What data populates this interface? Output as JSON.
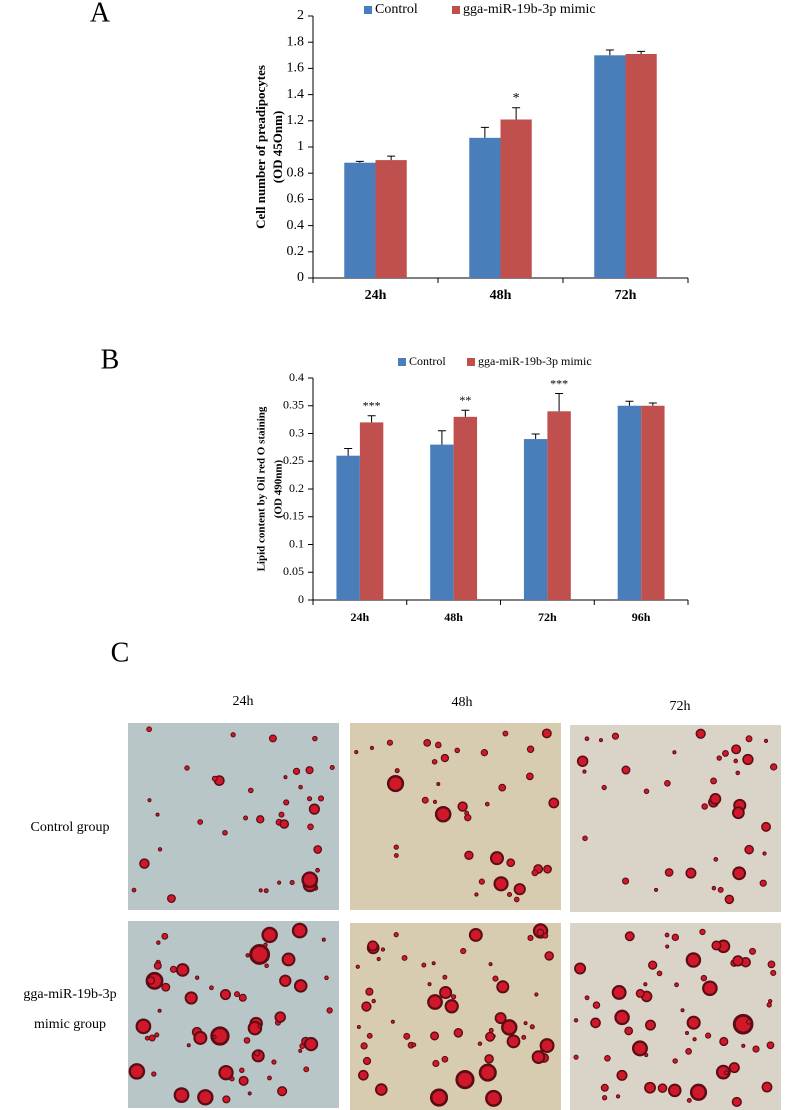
{
  "chart_data": [
    {
      "type": "bar",
      "panel_label": "A",
      "ylabel": [
        "Cell number of  preadipocytes",
        "(OD 45Onm)"
      ],
      "categories": [
        "24h",
        "48h",
        "72h"
      ],
      "series": [
        {
          "name": "Control",
          "color": "#4a7ebb",
          "values": [
            0.88,
            1.07,
            1.7
          ],
          "errors": [
            0.01,
            0.08,
            0.04
          ]
        },
        {
          "name": "gga-miR-19b-3p mimic",
          "color": "#c0504d",
          "values": [
            0.9,
            1.21,
            1.71
          ],
          "errors": [
            0.03,
            0.09,
            0.02
          ],
          "annotations": [
            null,
            "*",
            null
          ]
        }
      ],
      "ylim": [
        0,
        2
      ],
      "yticks": [
        0,
        0.2,
        0.4,
        0.6,
        0.8,
        1,
        1.2,
        1.4,
        1.6,
        1.8,
        2
      ],
      "legend": "top"
    },
    {
      "type": "bar",
      "panel_label": "B",
      "ylabel": [
        "Lipid content by Oil red O staining",
        "(OD 490nm)"
      ],
      "categories": [
        "24h",
        "48h",
        "72h",
        "96h"
      ],
      "series": [
        {
          "name": "Control",
          "color": "#4a7ebb",
          "values": [
            0.26,
            0.28,
            0.29,
            0.35
          ],
          "errors": [
            0.013,
            0.025,
            0.009,
            0.008
          ]
        },
        {
          "name": "gga-miR-19b-3p mimic",
          "color": "#c0504d",
          "values": [
            0.32,
            0.33,
            0.34,
            0.35
          ],
          "errors": [
            0.012,
            0.012,
            0.032,
            0.005
          ],
          "annotations": [
            "***",
            "**",
            "***",
            null
          ]
        }
      ],
      "ylim": [
        0,
        0.4
      ],
      "yticks": [
        0,
        0.05,
        0.1,
        0.15,
        0.2,
        0.25,
        0.3,
        0.35,
        0.4
      ],
      "legend": "top"
    }
  ],
  "panel_c": {
    "label": "C",
    "columns": [
      "24h",
      "48h",
      "72h"
    ],
    "rows": [
      [
        "Control group"
      ],
      [
        "gga-miR-19b-3p",
        "mimic group"
      ]
    ]
  }
}
